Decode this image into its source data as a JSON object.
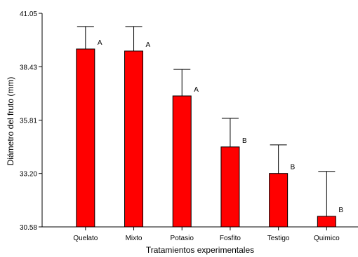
{
  "chart_data": {
    "type": "bar",
    "xlabel": "Tratamientos experimentales",
    "ylabel": "Diámetro del fruto (mm)",
    "ylim": [
      30.58,
      41.05
    ],
    "y_ticks": [
      "30.58",
      "33.20",
      "35.81",
      "38.43",
      "41.05"
    ],
    "categories": [
      "Quelato",
      "Mixto",
      "Potasio",
      "Fosfito",
      "Testigo",
      "Quimico"
    ],
    "values": [
      39.3,
      39.2,
      37.0,
      34.5,
      33.2,
      31.1
    ],
    "error_upper": [
      40.4,
      40.4,
      38.3,
      35.9,
      34.6,
      33.3
    ],
    "groups": [
      "A",
      "A",
      "A",
      "B",
      "B",
      "B"
    ],
    "bar_color": "#ff0000",
    "grid": false
  }
}
